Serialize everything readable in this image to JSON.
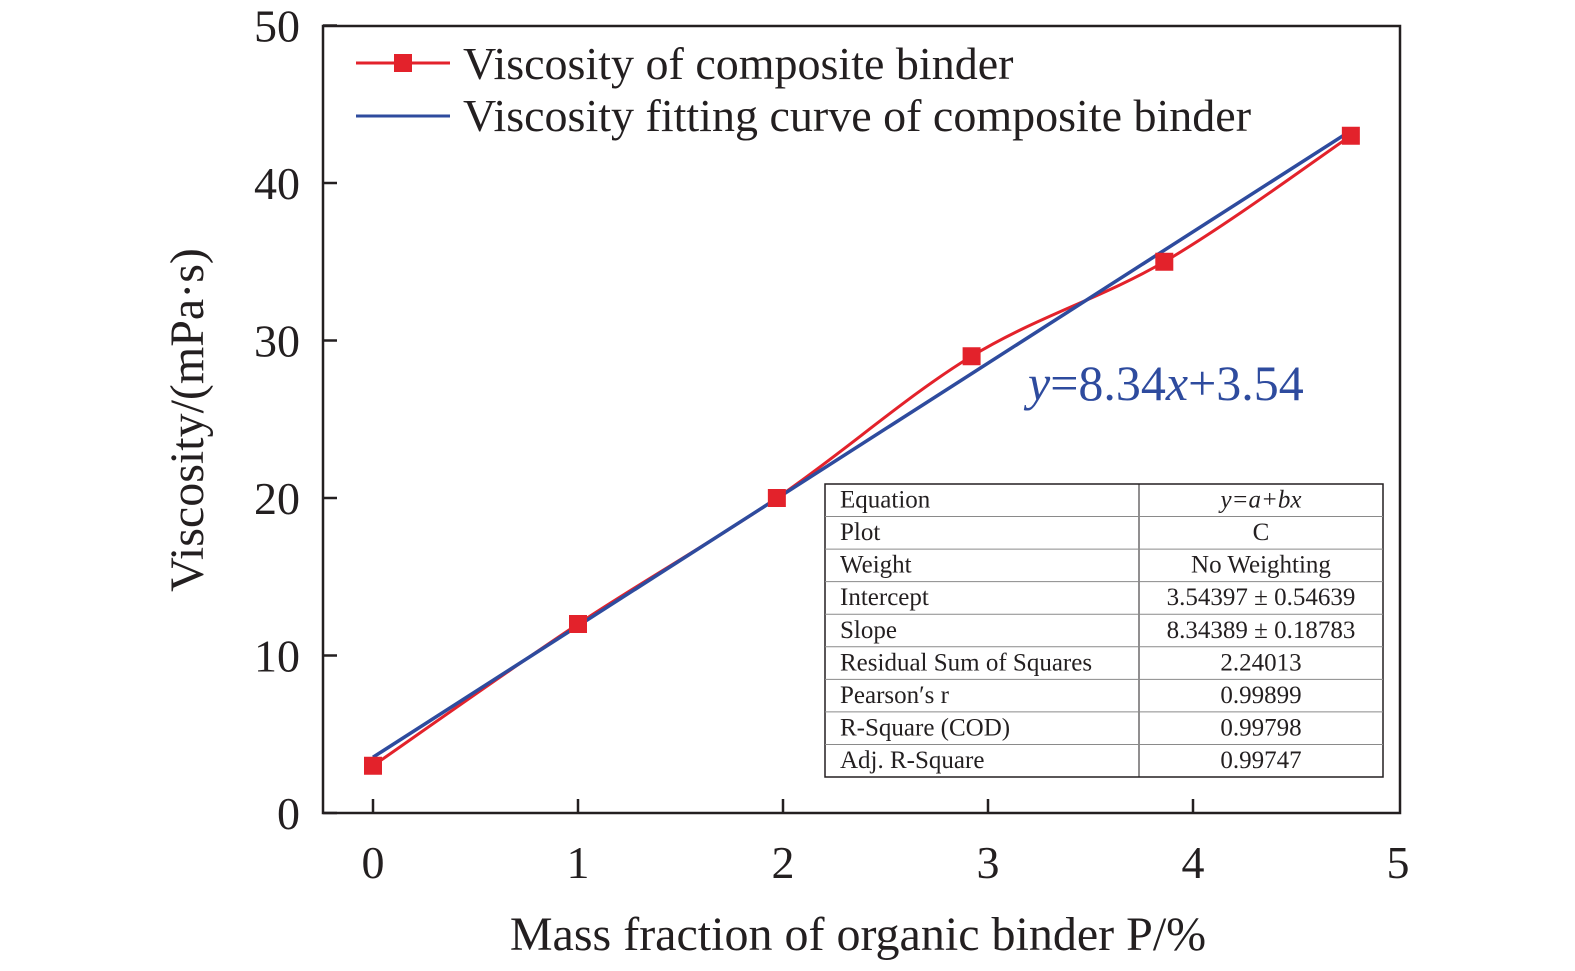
{
  "chart_data": {
    "type": "line",
    "xlabel": "Mass fraction of organic binder P/%",
    "ylabel": "Viscosity/(mPa·s)",
    "xlim": [
      0,
      5
    ],
    "ylim": [
      0,
      50
    ],
    "xticks": [
      "0",
      "1",
      "2",
      "3",
      "4",
      "5"
    ],
    "yticks": [
      "0",
      "10",
      "20",
      "30",
      "40",
      "50"
    ],
    "grid": false,
    "legend_position": "top-left",
    "series": [
      {
        "name": "Viscosity of composite binder",
        "color": "#e3222b",
        "marker": "square",
        "x": [
          0,
          1,
          1.97,
          2.92,
          3.86,
          4.77
        ],
        "y": [
          3,
          12,
          20,
          29,
          35,
          43
        ]
      },
      {
        "name": "Viscosity fitting curve of composite binder",
        "color": "#2e4b9e",
        "marker": "none",
        "fit": {
          "intercept": 3.54,
          "slope": 8.34
        },
        "x": [
          0,
          4.77
        ]
      }
    ],
    "annotation": {
      "equation_parts": [
        "y",
        "=8.34",
        "x",
        "+3.54"
      ],
      "color": "#2e4b9e"
    },
    "fit_table": [
      [
        "Equation",
        "y=a+bx"
      ],
      [
        "Plot",
        "C"
      ],
      [
        "Weight",
        "No Weighting"
      ],
      [
        "Intercept",
        "3.54397 ± 0.54639"
      ],
      [
        "Slope",
        "8.34389 ± 0.18783"
      ],
      [
        "Residual Sum of Squares",
        "2.24013"
      ],
      [
        "Pearson′s r",
        "0.99899"
      ],
      [
        "R-Square (COD)",
        "0.99798"
      ],
      [
        "Adj. R-Square",
        "0.99747"
      ]
    ]
  }
}
